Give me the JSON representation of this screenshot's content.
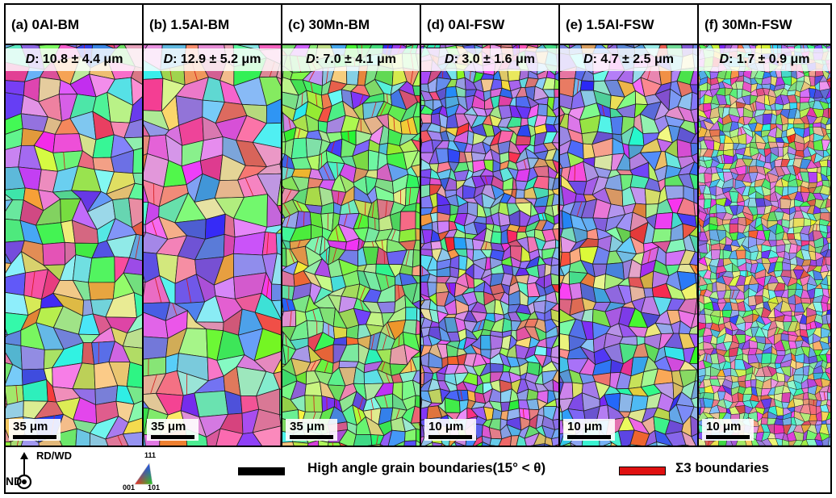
{
  "panels": [
    {
      "title": "(a) 0Al-BM",
      "grain_size": "10.8 ± 4.4 μm",
      "scale_bar": "35 μm"
    },
    {
      "title": "(b) 1.5Al-BM",
      "grain_size": "12.9 ± 5.2 μm",
      "scale_bar": "35 μm"
    },
    {
      "title": "(c) 30Mn-BM",
      "grain_size": "7.0 ± 4.1 μm",
      "scale_bar": "35 μm"
    },
    {
      "title": "(d) 0Al-FSW",
      "grain_size": "3.0 ± 1.6 μm",
      "scale_bar": "10 μm"
    },
    {
      "title": "(e) 1.5Al-FSW",
      "grain_size": "4.7 ± 2.5 μm",
      "scale_bar": "10 μm"
    },
    {
      "title": "(f) 30Mn-FSW",
      "grain_size": "1.7 ± 0.9 μm",
      "scale_bar": "10 μm"
    }
  ],
  "grain_label_prefix": "D",
  "legend": {
    "axis_up": "RD/WD",
    "axis_out": "ND",
    "ipf_top": "111",
    "ipf_left": "001",
    "ipf_right": "101",
    "hagb_label": "High angle grain boundaries(15° < θ)",
    "sigma3_label": "Σ3 boundaries",
    "hagb_color": "#000000",
    "sigma3_color": "#e01010"
  }
}
